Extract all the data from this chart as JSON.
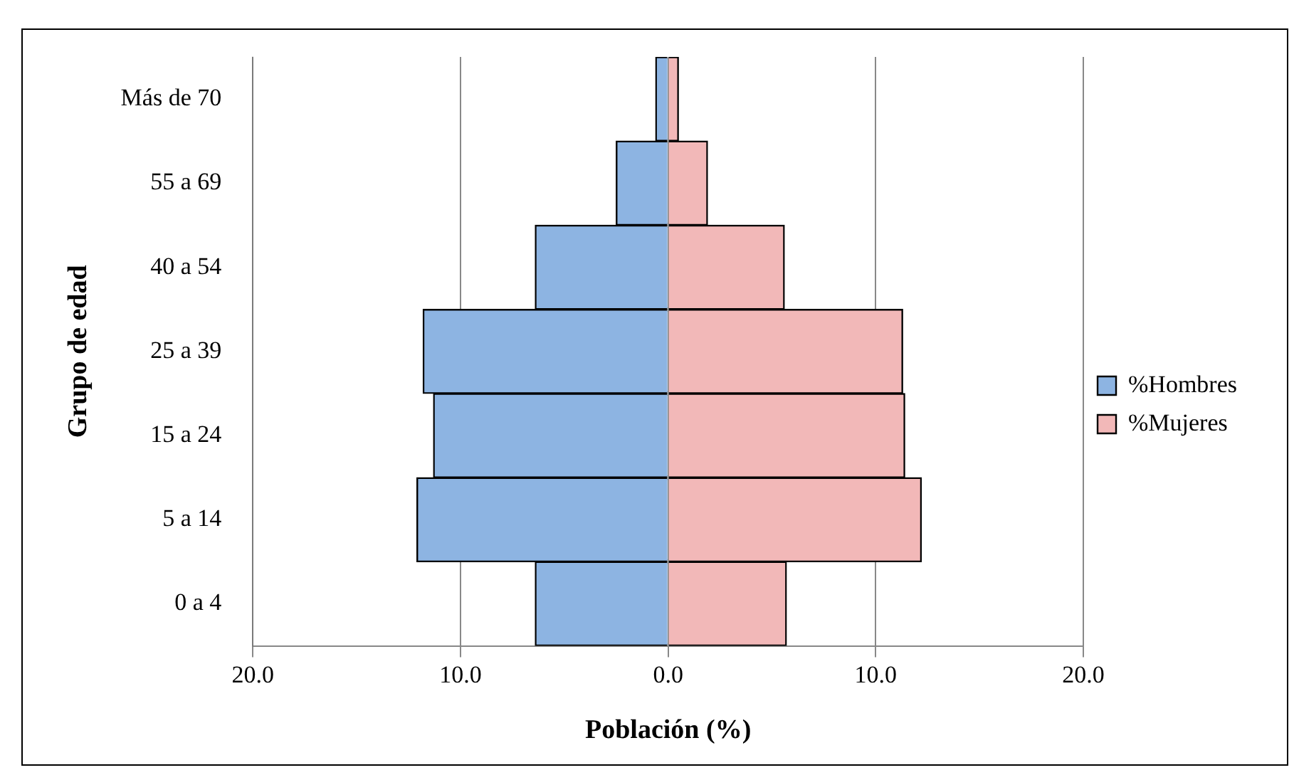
{
  "chart_data": {
    "type": "bar",
    "orientation": "horizontal",
    "stacked": true,
    "xlabel": "Población (%)",
    "ylabel": "Grupo de edad",
    "categories": [
      "Más de 70",
      "55 a 69",
      "40 a 54",
      "25 a 39",
      "15 a 24",
      "5 a 14",
      "0 a 4"
    ],
    "series": [
      {
        "name": "%Hombres",
        "color": "#8db4e2",
        "values": [
          -0.6,
          -2.5,
          -6.4,
          -11.8,
          -11.3,
          -12.1,
          -6.4
        ]
      },
      {
        "name": "%Mujeres",
        "color": "#f2b8b8",
        "values": [
          0.5,
          1.9,
          5.6,
          11.3,
          11.4,
          12.2,
          5.7
        ]
      }
    ],
    "xlim": [
      -20,
      20
    ],
    "xticks": [
      {
        "value": -20,
        "label": "20.0"
      },
      {
        "value": -10,
        "label": "10.0"
      },
      {
        "value": 0,
        "label": "0.0"
      },
      {
        "value": 10,
        "label": "10.0"
      },
      {
        "value": 20,
        "label": "20.0"
      }
    ],
    "grid": "x",
    "legend": "right"
  }
}
